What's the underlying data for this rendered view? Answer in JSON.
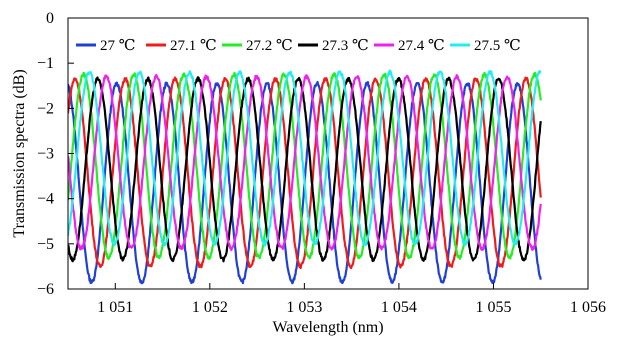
{
  "chart_data": {
    "type": "line",
    "title": "",
    "xlabel": "Wavelength (nm)",
    "ylabel": "Transmission spectra (dB)",
    "xlim": [
      1050.5,
      1056
    ],
    "ylim": [
      -6,
      0
    ],
    "x_ticks": [
      1051,
      1052,
      1053,
      1054,
      1055,
      1056
    ],
    "x_tick_labels": [
      "1 051",
      "1 052",
      "1 053",
      "1 054",
      "1 055",
      "1 056"
    ],
    "y_ticks": [
      0,
      -1,
      -2,
      -3,
      -4,
      -5,
      -6
    ],
    "y_tick_labels": [
      "0",
      "−1",
      "−2",
      "−3",
      "−4",
      "−5",
      "−6"
    ],
    "grid": false,
    "legend_position": "top",
    "x_range": [
      1050.5,
      1055.5
    ],
    "fringe_period_nm": 0.53,
    "series": [
      {
        "name": "27 ℃",
        "color": "#1f3fd6",
        "min_wavelengths": [
          1050.75,
          1051.28,
          1051.81,
          1052.34,
          1052.87,
          1053.4,
          1053.93,
          1054.46,
          1054.99
        ],
        "min_db": -5.85,
        "max_db": -1.45
      },
      {
        "name": "27.1 ℃",
        "color": "#ee1c1c",
        "min_wavelengths": [
          1050.84,
          1051.37,
          1051.9,
          1052.43,
          1052.96,
          1053.49,
          1054.02,
          1054.55,
          1055.08
        ],
        "min_db": -5.5,
        "max_db": -1.35
      },
      {
        "name": "27.2 ℃",
        "color": "#22ee22",
        "min_wavelengths": [
          1050.93,
          1051.46,
          1051.99,
          1052.52,
          1053.05,
          1053.58,
          1054.11,
          1054.64,
          1055.17
        ],
        "min_db": -5.3,
        "max_db": -1.25
      },
      {
        "name": "27.3 ℃",
        "color": "#000000",
        "min_wavelengths": [
          1050.55,
          1051.08,
          1051.61,
          1052.14,
          1052.67,
          1053.2,
          1053.73,
          1054.26,
          1054.79,
          1055.32
        ],
        "min_db": -5.35,
        "max_db": -1.35
      },
      {
        "name": "27.4 ℃",
        "color": "#ee22ee",
        "min_wavelengths": [
          1050.64,
          1051.17,
          1051.7,
          1052.23,
          1052.76,
          1053.29,
          1053.82,
          1054.35,
          1054.88,
          1055.41
        ],
        "min_db": -5.1,
        "max_db": -1.3
      },
      {
        "name": "27.5 ℃",
        "color": "#22eeee",
        "min_wavelengths": [
          1050.46,
          1050.99,
          1051.52,
          1052.05,
          1052.58,
          1053.11,
          1053.64,
          1054.17,
          1054.7,
          1055.23
        ],
        "min_db": -5.0,
        "max_db": -1.2
      }
    ]
  }
}
